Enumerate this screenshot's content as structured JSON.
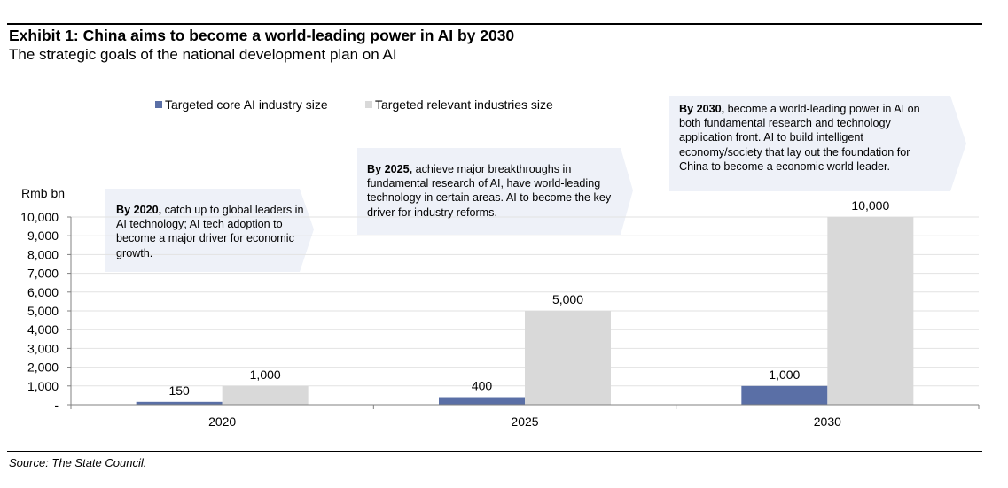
{
  "title": "Exhibit 1: China aims to become a world-leading power in AI by 2030",
  "subtitle": "The strategic goals of the national development plan on AI",
  "source": "Source: The State Council.",
  "colors": {
    "core": "#5a6fa6",
    "relevant": "#d9d9d9",
    "callout_bg": "#eef1f8",
    "grid": "#e2e2e2"
  },
  "callouts": [
    {
      "lead": "By 2020,",
      "text": " catch up to global leaders in AI technology; AI tech adoption to become a major driver for economic growth."
    },
    {
      "lead": "By 2025,",
      "text": " achieve major breakthroughs in fundamental research of AI, have world-leading technology in certain areas. AI to become the key driver for industry reforms."
    },
    {
      "lead": "By 2030,",
      "text": " become a world-leading power in AI on both fundamental  research and technology application front. AI to build intelligent economy/society that lay out the foundation for China to become a  economic world leader."
    }
  ],
  "chart_data": {
    "type": "bar",
    "categories": [
      "2020",
      "2025",
      "2030"
    ],
    "series": [
      {
        "name": "Targeted core AI industry size",
        "values": [
          150,
          400,
          1000
        ],
        "labels": [
          "150",
          "400",
          "1,000"
        ]
      },
      {
        "name": "Targeted relevant industries size",
        "values": [
          1000,
          5000,
          10000
        ],
        "labels": [
          "1,000",
          "5,000",
          "10,000"
        ]
      }
    ],
    "ylabel": "Rmb bn",
    "ylim": [
      0,
      10000
    ],
    "yticks": [
      0,
      1000,
      2000,
      3000,
      4000,
      5000,
      6000,
      7000,
      8000,
      9000,
      10000
    ],
    "ytick_labels": [
      "-",
      "1,000",
      "2,000",
      "3,000",
      "4,000",
      "5,000",
      "6,000",
      "7,000",
      "8,000",
      "9,000",
      "10,000"
    ],
    "grid": true,
    "legend": "top-left"
  }
}
